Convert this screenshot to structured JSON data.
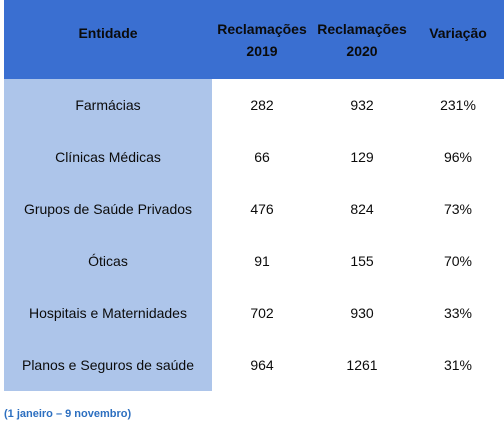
{
  "header": {
    "entity": "Entidade",
    "col2019_line1": "Reclamações",
    "col2019_line2": "2019",
    "col2020_line1": "Reclamações",
    "col2020_line2": "2020",
    "variation": "Variação"
  },
  "rows": [
    {
      "entity": "Farmácias",
      "y2019": "282",
      "y2020": "932",
      "variation": "231%"
    },
    {
      "entity": "Clínicas Médicas",
      "y2019": "66",
      "y2020": "129",
      "variation": "96%"
    },
    {
      "entity": "Grupos de Saúde Privados",
      "y2019": "476",
      "y2020": "824",
      "variation": "73%"
    },
    {
      "entity": "Óticas",
      "y2019": "91",
      "y2020": "155",
      "variation": "70%"
    },
    {
      "entity": "Hospitais e Maternidades",
      "y2019": "702",
      "y2020": "930",
      "variation": "33%"
    },
    {
      "entity": "Planos e Seguros de saúde",
      "y2019": "964",
      "y2020": "1261",
      "variation": "31%"
    }
  ],
  "footnote": "(1 janeiro – 9 novembro)",
  "colors": {
    "header_bg": "#3a6fd1",
    "entity_col_bg": "#adc5ea",
    "footnote_text": "#2c6fc0"
  }
}
